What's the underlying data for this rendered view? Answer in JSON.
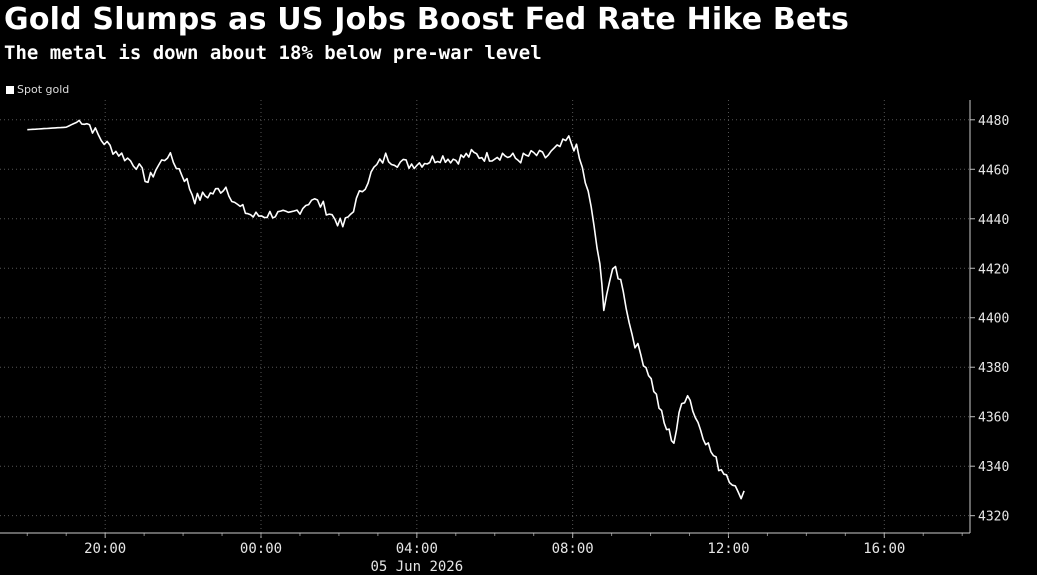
{
  "title": "Gold Slumps as US Jobs Boost Fed Rate Hike Bets",
  "subtitle": "The metal is down about 18% below pre-war level",
  "chart_data": {
    "type": "line",
    "legend": "top-left",
    "series": [
      {
        "name": "Spot gold",
        "color": "#ffffff",
        "points": [
          [
            -6.0,
            4476
          ],
          [
            -5.0,
            4477
          ],
          [
            -4.6,
            4480
          ],
          [
            -4.4,
            4478
          ],
          [
            -4.1,
            4472
          ],
          [
            -3.8,
            4468
          ],
          [
            -3.5,
            4465
          ],
          [
            -3.2,
            4462
          ],
          [
            -2.9,
            4455
          ],
          [
            -2.7,
            4460
          ],
          [
            -2.4,
            4466
          ],
          [
            -2.1,
            4460
          ],
          [
            -1.9,
            4455
          ],
          [
            -1.7,
            4448
          ],
          [
            -1.3,
            4450
          ],
          [
            -0.9,
            4453
          ],
          [
            -0.6,
            4445
          ],
          [
            -0.2,
            4441
          ],
          [
            0.3,
            4442
          ],
          [
            0.7,
            4441
          ],
          [
            1.0,
            4444
          ],
          [
            1.3,
            4448
          ],
          [
            1.6,
            4445
          ],
          [
            1.9,
            4440
          ],
          [
            2.1,
            4437
          ],
          [
            2.3,
            4442
          ],
          [
            2.6,
            4452
          ],
          [
            2.9,
            4460
          ],
          [
            3.2,
            4465
          ],
          [
            3.5,
            4463
          ],
          [
            3.8,
            4462
          ],
          [
            4.2,
            4463
          ],
          [
            4.6,
            4465
          ],
          [
            5.0,
            4464
          ],
          [
            5.4,
            4466
          ],
          [
            5.8,
            4465
          ],
          [
            6.2,
            4466
          ],
          [
            6.6,
            4464
          ],
          [
            7.0,
            4466
          ],
          [
            7.3,
            4465
          ],
          [
            7.6,
            4468
          ],
          [
            7.9,
            4472
          ],
          [
            8.1,
            4468
          ],
          [
            8.25,
            4460
          ],
          [
            8.4,
            4450
          ],
          [
            8.55,
            4437
          ],
          [
            8.7,
            4420
          ],
          [
            8.8,
            4405
          ],
          [
            8.95,
            4415
          ],
          [
            9.1,
            4420
          ],
          [
            9.3,
            4412
          ],
          [
            9.45,
            4398
          ],
          [
            9.6,
            4390
          ],
          [
            9.75,
            4385
          ],
          [
            9.95,
            4378
          ],
          [
            10.15,
            4368
          ],
          [
            10.35,
            4357
          ],
          [
            10.6,
            4350
          ],
          [
            10.8,
            4365
          ],
          [
            10.95,
            4370
          ],
          [
            11.15,
            4360
          ],
          [
            11.35,
            4353
          ],
          [
            11.55,
            4346
          ],
          [
            11.75,
            4340
          ],
          [
            11.95,
            4337
          ],
          [
            12.1,
            4334
          ],
          [
            12.25,
            4328
          ],
          [
            12.4,
            4330
          ]
        ]
      }
    ],
    "x_ticks": [
      {
        "value": -4,
        "label": "20:00"
      },
      {
        "value": 0,
        "label": "00:00"
      },
      {
        "value": 4,
        "label": "04:00"
      },
      {
        "value": 8,
        "label": "08:00"
      },
      {
        "value": 12,
        "label": "12:00"
      },
      {
        "value": 16,
        "label": "16:00"
      }
    ],
    "x_sublabel": "05 Jun 2026",
    "xlim": [
      -6.7,
      18.2
    ],
    "y_ticks": [
      4320,
      4340,
      4360,
      4380,
      4400,
      4420,
      4440,
      4460,
      4480
    ],
    "ylim": [
      4313,
      4488
    ],
    "y_axis_side": "right",
    "grid": true
  }
}
